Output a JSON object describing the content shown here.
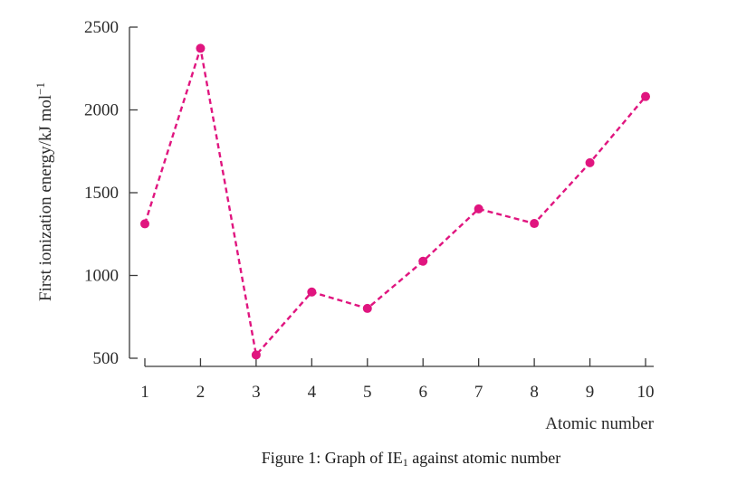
{
  "chart_data": {
    "type": "line",
    "x": [
      1,
      2,
      3,
      4,
      5,
      6,
      7,
      8,
      9,
      10
    ],
    "series": [
      {
        "values": [
          1312,
          2372,
          520,
          900,
          801,
          1086,
          1402,
          1314,
          1681,
          2081
        ],
        "color": "#e0157f",
        "line_style": "dashed",
        "marker": "circle"
      }
    ],
    "xlabel": "Atomic number",
    "ylabel": {
      "main": "First ionization energy/",
      "unit": "kJ mol",
      "unit_superscript": "−1"
    },
    "xlim": [
      1,
      10
    ],
    "ylim": [
      500,
      2500
    ],
    "yticks": [
      500,
      1000,
      1500,
      2000,
      2500
    ],
    "xticks": [
      1,
      2,
      3,
      4,
      5,
      6,
      7,
      8,
      9,
      10
    ],
    "grid": false
  },
  "caption": {
    "before": "Figure 1: Graph of IE",
    "subscript": "1",
    "after": " against atomic number"
  }
}
